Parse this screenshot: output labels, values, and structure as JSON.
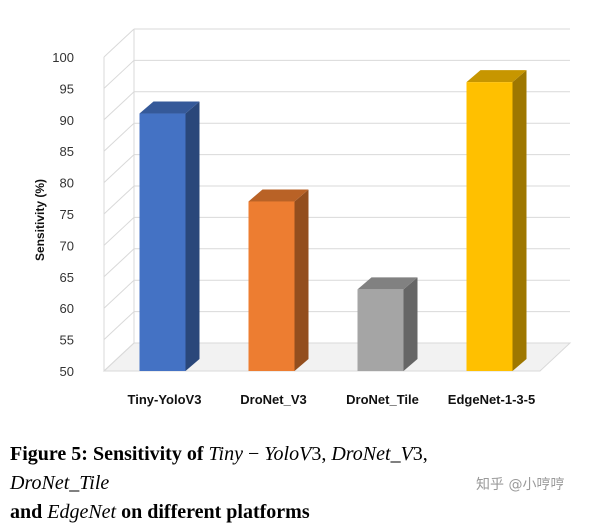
{
  "chart_data": {
    "type": "bar",
    "style": "3d-column",
    "categories": [
      "Tiny-YoloV3",
      "DroNet_V3",
      "DroNet_Tile",
      "EdgeNet-1-3-5"
    ],
    "values": [
      91,
      77,
      63,
      96
    ],
    "colors": [
      "#4472c4",
      "#ed7d31",
      "#a5a5a5",
      "#ffc000"
    ],
    "ylabel": "Sensitivity (%)",
    "ylim": [
      50,
      100
    ],
    "yticks": [
      "50",
      "55",
      "60",
      "65",
      "70",
      "75",
      "80",
      "85",
      "90",
      "95",
      "100"
    ],
    "grid": true
  },
  "caption": {
    "label": "Figure 5: Sensitivity of",
    "m1": "Tiny",
    "m1_op": " − ",
    "m1b": "YoloV",
    "m1_num": "3",
    "sep1": ", ",
    "m2": "DroNet_V",
    "m2_num": "3",
    "sep2": ", ",
    "m3": "DroNet_Tile",
    "and": "and",
    "m4": "EdgeNet",
    "tail": "on different platforms"
  },
  "watermark": "知乎 @小哼哼"
}
